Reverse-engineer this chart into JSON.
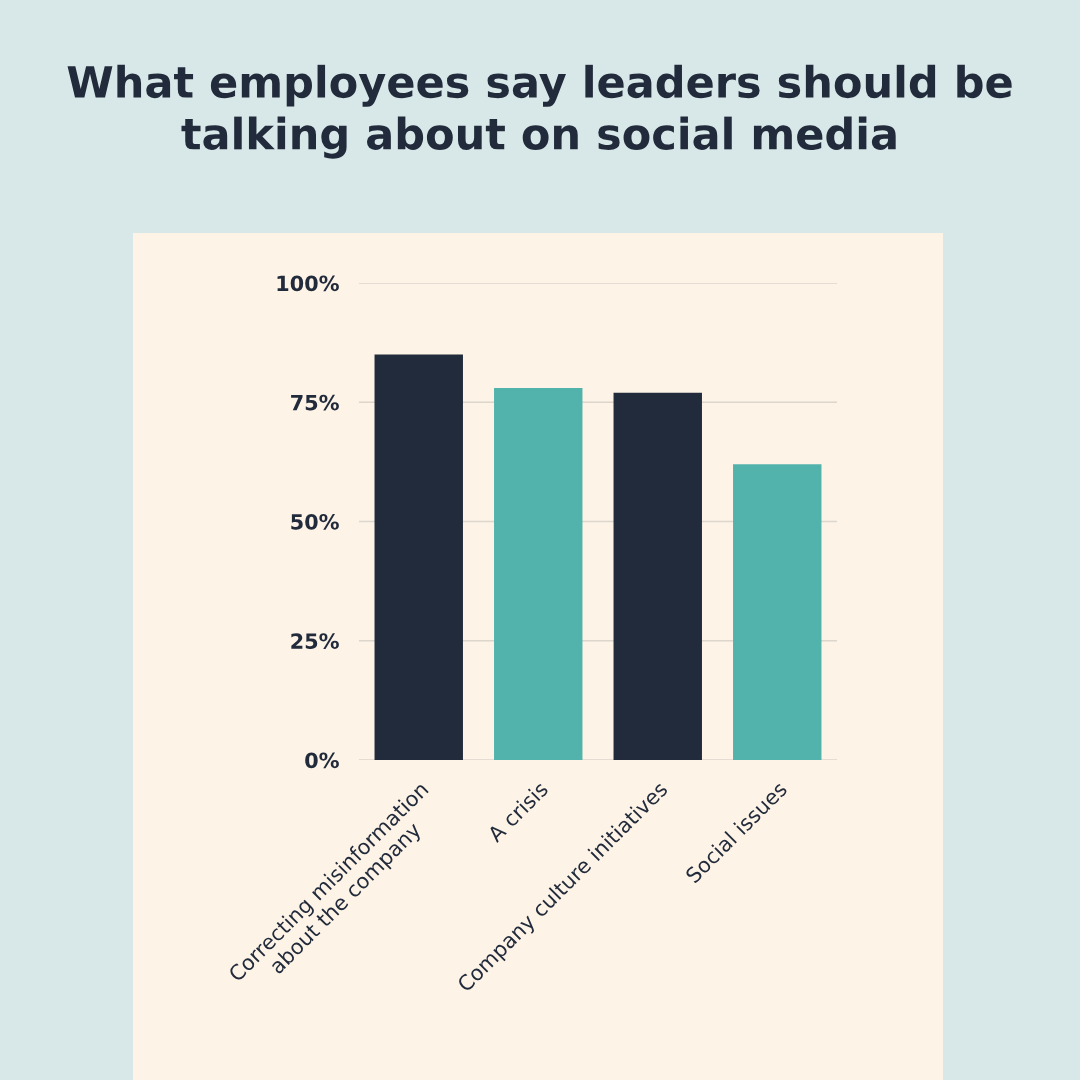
{
  "chart_data": {
    "type": "bar",
    "title": "What employees say leaders should be\ntalking about on social media",
    "categories": [
      "Correcting misinformation\nabout the company",
      "A crisis",
      "Company culture initiatives",
      "Social issues"
    ],
    "values": [
      85,
      78,
      77,
      62
    ],
    "colors": [
      "#222b3b",
      "#52b3ad",
      "#222b3b",
      "#52b3ad"
    ],
    "ylim": [
      0,
      100
    ],
    "yticks": [
      {
        "value": 0,
        "label": "0%"
      },
      {
        "value": 25,
        "label": "25%"
      },
      {
        "value": 50,
        "label": "50%"
      },
      {
        "value": 75,
        "label": "75%"
      },
      {
        "value": 100,
        "label": "100%"
      }
    ],
    "grid": "y"
  }
}
